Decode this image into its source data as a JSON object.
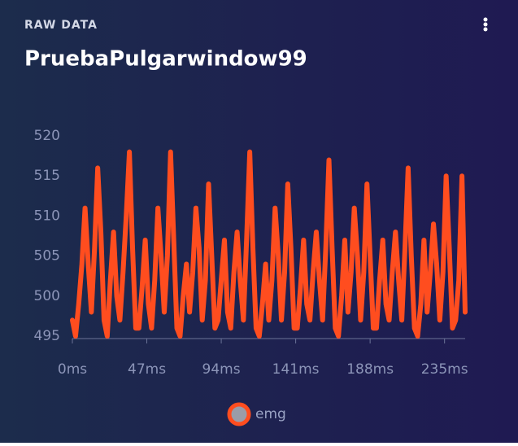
{
  "header": {
    "label": "RAW DATA"
  },
  "chart_data": {
    "type": "line",
    "title": "PruebaPulgarwindow99",
    "x": [
      0,
      2,
      4,
      6,
      8,
      10,
      12,
      14,
      16,
      18,
      20,
      22,
      24,
      26,
      28,
      30,
      32,
      34,
      36,
      38,
      40,
      42,
      44,
      46,
      48,
      50,
      52,
      54,
      56,
      58,
      60,
      62,
      64,
      66,
      68,
      70,
      72,
      74,
      76,
      78,
      80,
      82,
      84,
      86,
      88,
      90,
      92,
      94,
      96,
      98,
      100,
      102,
      104,
      106,
      108,
      110,
      112,
      114,
      116,
      118,
      120,
      122,
      124,
      126,
      128,
      130,
      132,
      134,
      136,
      138,
      140,
      142,
      144,
      146,
      148,
      150,
      152,
      154,
      156,
      158,
      160,
      162,
      164,
      166,
      168,
      170,
      172,
      174,
      176,
      178,
      180,
      182,
      184,
      186,
      188,
      190,
      192,
      194,
      196,
      198,
      200,
      202,
      204,
      206,
      208,
      210,
      212,
      214,
      216,
      218,
      220,
      222,
      224,
      226,
      228,
      230,
      232,
      234,
      236,
      238,
      240,
      242,
      244,
      246,
      248
    ],
    "series": [
      {
        "name": "emg",
        "color": "#ff4d1f",
        "values": [
          497,
          495,
          499,
          504,
          511,
          504,
          498,
          506,
          516,
          508,
          497,
          495,
          502,
          508,
          500,
          497,
          503,
          510,
          518,
          506,
          496,
          496,
          501,
          507,
          499,
          496,
          502,
          511,
          505,
          498,
          505,
          518,
          507,
          496,
          495,
          500,
          504,
          498,
          503,
          511,
          506,
          497,
          502,
          514,
          505,
          496,
          497,
          502,
          507,
          498,
          496,
          503,
          508,
          502,
          497,
          507,
          518,
          506,
          496,
          495,
          499,
          504,
          497,
          502,
          511,
          505,
          497,
          503,
          514,
          506,
          496,
          496,
          501,
          507,
          499,
          497,
          503,
          508,
          502,
          497,
          506,
          517,
          506,
          496,
          495,
          500,
          507,
          498,
          503,
          511,
          505,
          497,
          503,
          514,
          505,
          496,
          496,
          502,
          507,
          499,
          497,
          503,
          508,
          502,
          497,
          506,
          516,
          505,
          496,
          495,
          499,
          507,
          498,
          503,
          509,
          504,
          497,
          503,
          515,
          506,
          496,
          497,
          502,
          515,
          498
        ]
      }
    ],
    "xlim": [
      0,
      248
    ],
    "xticks": [
      {
        "value": 0,
        "label": "0ms"
      },
      {
        "value": 47,
        "label": "47ms"
      },
      {
        "value": 94,
        "label": "94ms"
      },
      {
        "value": 141,
        "label": "141ms"
      },
      {
        "value": 188,
        "label": "188ms"
      },
      {
        "value": 235,
        "label": "235ms"
      }
    ],
    "ylim": [
      494.7,
      520
    ],
    "yticks": [
      495,
      500,
      505,
      510,
      515,
      520
    ]
  }
}
